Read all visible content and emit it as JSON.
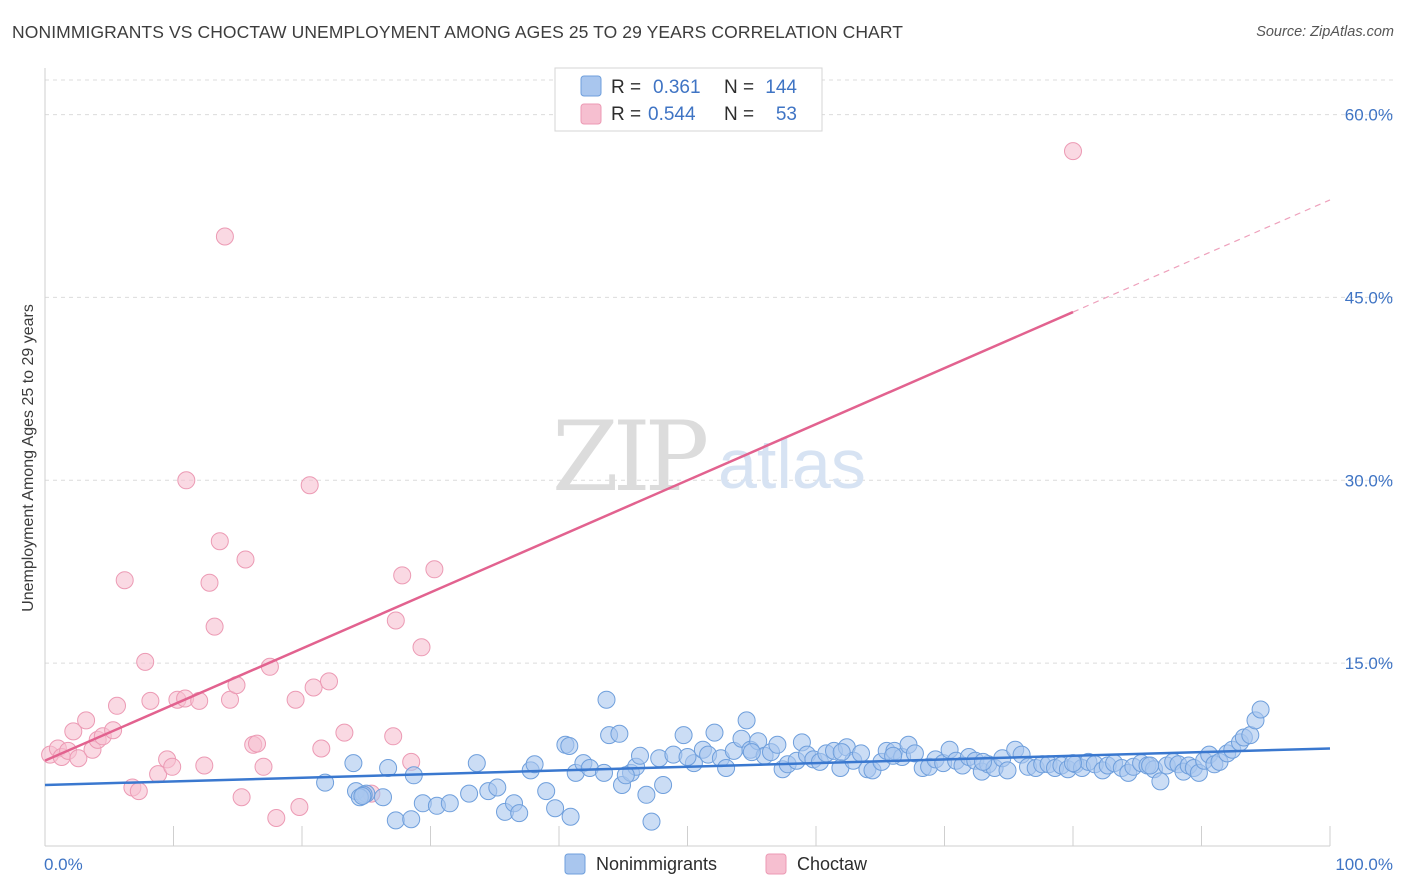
{
  "title": "NONIMMIGRANTS VS CHOCTAW UNEMPLOYMENT AMONG AGES 25 TO 29 YEARS CORRELATION CHART",
  "source": "Source: ZipAtlas.com",
  "watermark": {
    "zip": "ZIP",
    "atlas": "atlas"
  },
  "colors": {
    "blue_fill": "#a9c6ee",
    "blue_stroke": "#6f9fdc",
    "blue_line": "#3a78cf",
    "pink_fill": "#f6bfd0",
    "pink_stroke": "#ec9ab4",
    "pink_line": "#e2628f",
    "grid": "#dcdcdc",
    "tick_text": "#3f74c4"
  },
  "legend": {
    "rows": [
      {
        "r_label": "R =",
        "r_value": "0.361",
        "n_label": "N =",
        "n_value": "144"
      },
      {
        "r_label": "R =",
        "r_value": "0.544",
        "n_label": "N =",
        "n_value": "53"
      }
    ]
  },
  "chart_data": {
    "type": "scatter",
    "title": "NONIMMIGRANTS VS CHOCTAW UNEMPLOYMENT AMONG AGES 25 TO 29 YEARS CORRELATION CHART",
    "xlabel": "",
    "ylabel": "Unemployment Among Ages 25 to 29 years",
    "xlim": [
      0,
      100
    ],
    "ylim": [
      0,
      63
    ],
    "x_tick_labels": {
      "left": "0.0%",
      "right": "100.0%"
    },
    "y_ticks": [
      {
        "value": 15,
        "label": "15.0%"
      },
      {
        "value": 30,
        "label": "30.0%"
      },
      {
        "value": 45,
        "label": "45.0%"
      },
      {
        "value": 60,
        "label": "60.0%"
      }
    ],
    "series": [
      {
        "name": "Nonimmigrants",
        "color": "blue",
        "trend": {
          "x0": 0,
          "y0": 5.0,
          "x1": 100,
          "y1": 8.0
        },
        "points": [
          [
            21.8,
            5.2
          ],
          [
            24.2,
            4.5
          ],
          [
            25.0,
            4.3
          ],
          [
            24.8,
            4.2
          ],
          [
            26.3,
            4.0
          ],
          [
            27.3,
            2.1
          ],
          [
            28.5,
            2.2
          ],
          [
            29.4,
            3.5
          ],
          [
            30.5,
            3.3
          ],
          [
            31.5,
            3.5
          ],
          [
            24.0,
            6.8
          ],
          [
            26.7,
            6.4
          ],
          [
            28.7,
            5.8
          ],
          [
            34.5,
            4.5
          ],
          [
            35.2,
            4.8
          ],
          [
            33.6,
            6.8
          ],
          [
            35.8,
            2.8
          ],
          [
            36.5,
            3.5
          ],
          [
            36.9,
            2.7
          ],
          [
            37.8,
            6.2
          ],
          [
            38.1,
            6.7
          ],
          [
            39.0,
            4.5
          ],
          [
            39.7,
            3.1
          ],
          [
            40.5,
            8.3
          ],
          [
            40.8,
            8.2
          ],
          [
            40.9,
            2.4
          ],
          [
            41.3,
            6.0
          ],
          [
            41.9,
            6.8
          ],
          [
            42.4,
            6.4
          ],
          [
            43.5,
            6.0
          ],
          [
            43.7,
            12.0
          ],
          [
            43.9,
            9.1
          ],
          [
            44.7,
            9.2
          ],
          [
            44.9,
            5.0
          ],
          [
            45.6,
            6.0
          ],
          [
            46.0,
            6.5
          ],
          [
            46.3,
            7.4
          ],
          [
            46.8,
            4.2
          ],
          [
            47.2,
            2.0
          ],
          [
            47.8,
            7.2
          ],
          [
            48.1,
            5.0
          ],
          [
            48.9,
            7.5
          ],
          [
            49.7,
            9.1
          ],
          [
            50.5,
            6.8
          ],
          [
            51.2,
            7.9
          ],
          [
            51.6,
            7.5
          ],
          [
            52.1,
            9.3
          ],
          [
            52.6,
            7.2
          ],
          [
            53.0,
            6.4
          ],
          [
            53.6,
            7.8
          ],
          [
            54.2,
            8.8
          ],
          [
            54.6,
            10.3
          ],
          [
            54.9,
            7.9
          ],
          [
            55.5,
            8.6
          ],
          [
            56.0,
            7.4
          ],
          [
            56.5,
            7.7
          ],
          [
            57.0,
            8.3
          ],
          [
            57.4,
            6.3
          ],
          [
            57.8,
            6.7
          ],
          [
            58.5,
            7.0
          ],
          [
            58.9,
            8.5
          ],
          [
            59.3,
            7.5
          ],
          [
            59.8,
            7.1
          ],
          [
            60.3,
            6.9
          ],
          [
            60.8,
            7.6
          ],
          [
            61.4,
            7.8
          ],
          [
            61.9,
            6.4
          ],
          [
            62.4,
            8.1
          ],
          [
            62.9,
            7.0
          ],
          [
            63.5,
            7.6
          ],
          [
            64.0,
            6.3
          ],
          [
            64.4,
            6.2
          ],
          [
            65.1,
            6.9
          ],
          [
            65.5,
            7.8
          ],
          [
            66.1,
            7.8
          ],
          [
            66.7,
            7.3
          ],
          [
            67.2,
            8.3
          ],
          [
            67.7,
            7.6
          ],
          [
            68.3,
            6.4
          ],
          [
            68.8,
            6.5
          ],
          [
            69.3,
            7.1
          ],
          [
            69.9,
            6.8
          ],
          [
            70.4,
            7.9
          ],
          [
            70.9,
            7.0
          ],
          [
            71.4,
            6.6
          ],
          [
            71.9,
            7.3
          ],
          [
            72.4,
            7.0
          ],
          [
            72.9,
            6.1
          ],
          [
            73.4,
            6.7
          ],
          [
            73.9,
            6.4
          ],
          [
            74.5,
            7.2
          ],
          [
            74.9,
            6.2
          ],
          [
            75.5,
            7.9
          ],
          [
            76.0,
            7.5
          ],
          [
            76.5,
            6.5
          ],
          [
            77.1,
            6.4
          ],
          [
            77.6,
            6.7
          ],
          [
            78.1,
            6.7
          ],
          [
            78.6,
            6.4
          ],
          [
            79.1,
            6.6
          ],
          [
            79.6,
            6.3
          ],
          [
            80.2,
            6.7
          ],
          [
            80.7,
            6.4
          ],
          [
            81.2,
            6.9
          ],
          [
            81.7,
            6.7
          ],
          [
            82.3,
            6.2
          ],
          [
            82.7,
            6.6
          ],
          [
            83.2,
            6.8
          ],
          [
            83.8,
            6.4
          ],
          [
            84.3,
            6.0
          ],
          [
            84.7,
            6.5
          ],
          [
            85.3,
            6.8
          ],
          [
            85.8,
            6.6
          ],
          [
            86.3,
            6.3
          ],
          [
            86.8,
            5.3
          ],
          [
            87.3,
            6.6
          ],
          [
            87.8,
            6.9
          ],
          [
            88.2,
            6.7
          ],
          [
            88.6,
            6.1
          ],
          [
            89.0,
            6.6
          ],
          [
            89.4,
            6.4
          ],
          [
            89.8,
            6.0
          ],
          [
            90.2,
            7.0
          ],
          [
            90.6,
            7.5
          ],
          [
            91.0,
            6.7
          ],
          [
            91.4,
            6.9
          ],
          [
            92.0,
            7.6
          ],
          [
            92.4,
            7.9
          ],
          [
            93.0,
            8.5
          ],
          [
            93.3,
            8.9
          ],
          [
            93.8,
            9.1
          ],
          [
            94.2,
            10.3
          ],
          [
            94.6,
            11.2
          ],
          [
            24.5,
            4.0
          ],
          [
            24.7,
            4.1
          ],
          [
            33.0,
            4.3
          ],
          [
            45.2,
            5.8
          ],
          [
            50.0,
            7.3
          ],
          [
            55.0,
            7.7
          ],
          [
            62.0,
            7.7
          ],
          [
            66.0,
            7.4
          ],
          [
            73.0,
            6.9
          ],
          [
            80.0,
            6.8
          ],
          [
            86.0,
            6.6
          ]
        ]
      },
      {
        "name": "Choctaw",
        "color": "pink",
        "trend": {
          "x0": 0,
          "y0": 7.0,
          "x1": 80,
          "y1": 43.8,
          "dash_to_x": 100,
          "dash_to_y": 53.0
        },
        "points": [
          [
            0.4,
            7.5
          ],
          [
            1.0,
            8.0
          ],
          [
            1.3,
            7.3
          ],
          [
            1.8,
            7.8
          ],
          [
            2.2,
            9.4
          ],
          [
            2.6,
            7.2
          ],
          [
            3.2,
            10.3
          ],
          [
            3.7,
            7.9
          ],
          [
            4.1,
            8.7
          ],
          [
            4.5,
            9.0
          ],
          [
            5.3,
            9.5
          ],
          [
            5.6,
            11.5
          ],
          [
            6.2,
            21.8
          ],
          [
            6.8,
            4.8
          ],
          [
            7.3,
            4.5
          ],
          [
            7.8,
            15.1
          ],
          [
            8.2,
            11.9
          ],
          [
            8.8,
            5.9
          ],
          [
            9.5,
            7.1
          ],
          [
            9.9,
            6.5
          ],
          [
            10.3,
            12.0
          ],
          [
            10.9,
            12.1
          ],
          [
            11.0,
            30.0
          ],
          [
            12.0,
            11.9
          ],
          [
            12.4,
            6.6
          ],
          [
            12.8,
            21.6
          ],
          [
            13.2,
            18.0
          ],
          [
            13.6,
            25.0
          ],
          [
            14.0,
            50.0
          ],
          [
            14.4,
            12.0
          ],
          [
            14.9,
            13.2
          ],
          [
            15.3,
            4.0
          ],
          [
            15.6,
            23.5
          ],
          [
            16.2,
            8.3
          ],
          [
            16.5,
            8.4
          ],
          [
            17.0,
            6.5
          ],
          [
            17.5,
            14.7
          ],
          [
            18.0,
            2.3
          ],
          [
            19.5,
            12.0
          ],
          [
            19.8,
            3.2
          ],
          [
            20.6,
            29.6
          ],
          [
            20.9,
            13.0
          ],
          [
            21.5,
            8.0
          ],
          [
            22.1,
            13.5
          ],
          [
            23.3,
            9.3
          ],
          [
            25.4,
            4.3
          ],
          [
            27.1,
            9.0
          ],
          [
            27.3,
            18.5
          ],
          [
            27.8,
            22.2
          ],
          [
            28.5,
            6.9
          ],
          [
            29.3,
            16.3
          ],
          [
            30.3,
            22.7
          ],
          [
            80.0,
            57.0
          ]
        ]
      }
    ]
  }
}
